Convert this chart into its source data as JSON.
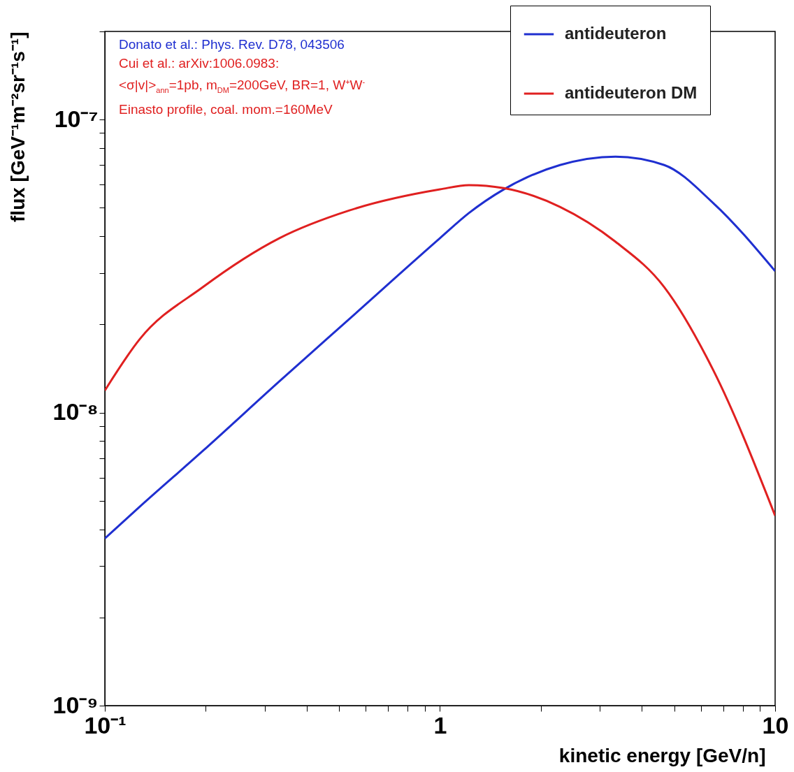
{
  "chart_data": {
    "type": "line",
    "xlabel": "kinetic energy [GeV/n]",
    "ylabel": "flux [GeV⁻¹m⁻²sr⁻¹s⁻¹]",
    "annotations": [
      "Donato et al.: Phys. Rev. D78, 043506",
      "Cui et al.: arXiv:1006.0983:",
      "<σ|v|>$_{ann}$=1pb, m$_{DM}$=200GeV, BR=1, W$^{+}$W$^{-}$",
      "Einasto profile, coal. mom.=160MeV"
    ],
    "log": "xy",
    "legend": "top right",
    "grid": false,
    "xlim": [
      0.1,
      10
    ],
    "ylim": [
      1e-09,
      2e-07
    ],
    "xticks": [
      {
        "value": 0.1,
        "label": "10⁻¹"
      },
      {
        "value": 0.2,
        "label": null
      },
      {
        "value": 0.3,
        "label": null
      },
      {
        "value": 0.4,
        "label": null
      },
      {
        "value": 0.5,
        "label": null
      },
      {
        "value": 0.6,
        "label": null
      },
      {
        "value": 0.7,
        "label": null
      },
      {
        "value": 0.8,
        "label": null
      },
      {
        "value": 0.9,
        "label": null
      },
      1,
      {
        "value": 2,
        "label": null
      },
      {
        "value": 3,
        "label": null
      },
      {
        "value": 4,
        "label": null
      },
      {
        "value": 5,
        "label": null
      },
      {
        "value": 6,
        "label": null
      },
      {
        "value": 7,
        "label": null
      },
      {
        "value": 8,
        "label": null
      },
      {
        "value": 9,
        "label": null
      },
      10
    ],
    "yticks": [
      {
        "value": 1e-09,
        "label": "10⁻⁹"
      },
      {
        "value": 2e-09,
        "label": null
      },
      {
        "value": 3e-09,
        "label": null
      },
      {
        "value": 4e-09,
        "label": null
      },
      {
        "value": 5e-09,
        "label": null
      },
      {
        "value": 6e-09,
        "label": null
      },
      {
        "value": 7e-09,
        "label": null
      },
      {
        "value": 8e-09,
        "label": null
      },
      {
        "value": 9e-09,
        "label": null
      },
      {
        "value": 1e-08,
        "label": "10⁻⁸"
      },
      {
        "value": 2e-08,
        "label": null
      },
      {
        "value": 3e-08,
        "label": null
      },
      {
        "value": 4e-08,
        "label": null
      },
      {
        "value": 5e-08,
        "label": null
      },
      {
        "value": 6e-08,
        "label": null
      },
      {
        "value": 7e-08,
        "label": null
      },
      {
        "value": 8e-08,
        "label": null
      },
      {
        "value": 9e-08,
        "label": null
      },
      {
        "value": 1e-07,
        "label": "10⁻⁷"
      },
      {
        "value": 2e-07,
        "label": null
      }
    ],
    "x": [
      0.1,
      0.127,
      0.196,
      0.332,
      0.537,
      1,
      1.22,
      1.55,
      2.28,
      3.34,
      4.67,
      6.55,
      10
    ],
    "series": [
      {
        "name": "antideuteron",
        "color": "#1f2fd0",
        "values": [
          3.72e-09,
          4.77e-09,
          7.4e-09,
          1.28e-08,
          2.09e-08,
          3.94e-08,
          4.8e-08,
          5.78e-08,
          7e-08,
          7.48e-08,
          7e-08,
          5.18e-08,
          3.04e-08
        ]
      },
      {
        "name": "antideuteron DM",
        "color": "#e02020",
        "values": [
          1.19e-08,
          1.78e-08,
          2.68e-08,
          3.94e-08,
          4.9e-08,
          5.78e-08,
          5.98e-08,
          5.84e-08,
          5.04e-08,
          3.83e-08,
          2.68e-08,
          1.39e-08,
          4.45e-09
        ]
      }
    ]
  }
}
